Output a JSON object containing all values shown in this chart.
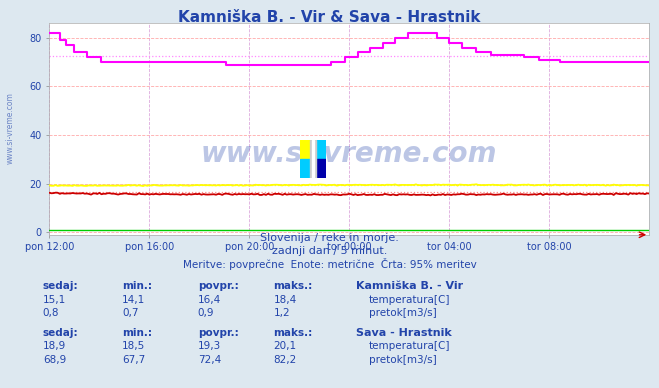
{
  "title": "Kamniška B. - Vir & Sava - Hrastnik",
  "title_color": "#2244aa",
  "bg_color": "#dde8f0",
  "plot_bg_color": "#ffffff",
  "xlabel_color": "#2244aa",
  "ylabel_color": "#2244aa",
  "x_ticks_labels": [
    "pon 12:00",
    "pon 16:00",
    "pon 20:00",
    "tor 00:00",
    "tor 04:00",
    "tor 08:00"
  ],
  "x_ticks_pos": [
    0,
    48,
    96,
    144,
    192,
    240
  ],
  "y_ticks": [
    0,
    20,
    40,
    60,
    80
  ],
  "ylim": [
    -1,
    86
  ],
  "xlim": [
    0,
    288
  ],
  "watermark": "www.si-vreme.com",
  "watermark_color": "#2244aa",
  "watermark_alpha": 0.3,
  "side_text": "www.si-vreme.com",
  "subtitle1": "Slovenija / reke in morje.",
  "subtitle2": "zadnji dan / 5 minut.",
  "subtitle3": "Meritve: povprečne  Enote: metrične  Črta: 95% meritev",
  "subtitle_color": "#2244aa",
  "sava_pretok_color": "#ff00ff",
  "sava_pretok_avg_color": "#ff88ff",
  "sava_pretok_avg": 72.4,
  "sava_temp_color": "#ffff00",
  "sava_temp_avg_color": "#dddd88",
  "sava_temp_avg": 19.3,
  "kam_temp_color": "#cc0000",
  "kam_temp_avg_color": "#ff8888",
  "kam_temp_avg": 16.4,
  "kam_pretok_color": "#00cc00",
  "kam_pretok_avg_color": "#88ff88",
  "kam_pretok_avg": 0.9,
  "grid_v_color": "#ddaadd",
  "grid_h_color": "#ffaaaa",
  "table": {
    "station1": "Kamniška B. - Vir",
    "station2": "Sava - Hrastnik",
    "headers": [
      "sedaj:",
      "min.:",
      "povpr.:",
      "maks.:"
    ],
    "s1_temp": [
      15.1,
      14.1,
      16.4,
      18.4
    ],
    "s1_pretok": [
      0.8,
      0.7,
      0.9,
      1.2
    ],
    "s2_temp": [
      18.9,
      18.5,
      19.3,
      20.1
    ],
    "s2_pretok": [
      68.9,
      67.7,
      72.4,
      82.2
    ],
    "colors": {
      "s1_temp": "#cc0000",
      "s1_pretok": "#00cc00",
      "s2_temp": "#cccc00",
      "s2_pretok": "#cc00cc"
    },
    "header_color": "#2244aa",
    "value_color": "#2244aa",
    "station_color": "#2244aa"
  }
}
